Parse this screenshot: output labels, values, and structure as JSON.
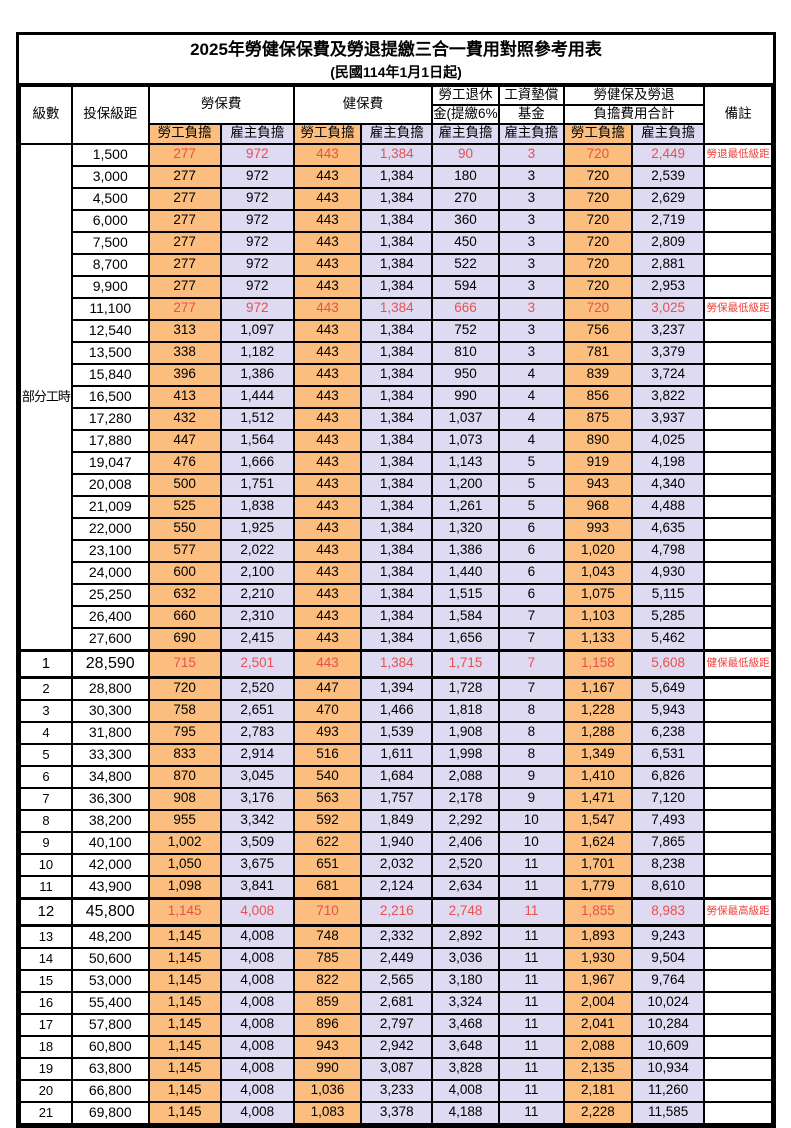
{
  "title": "2025年勞健保保費及勞退提繳三合一費用對照參考用表",
  "subtitle": "(民國114年1月1日起)",
  "colors": {
    "employee_bg": "#FBBE7E",
    "employer_bg": "#DEDAF1",
    "highlight_value_red": "#E8504E",
    "remark_red": "#F23F3A",
    "border": "#000000"
  },
  "header": {
    "level": "級數",
    "bracket": "投保級距",
    "labor_insurance": "勞保費",
    "health_insurance": "健保費",
    "pension_line1": "勞工退休",
    "pension_line2": "金(提繳6%)",
    "wage_fund_line1": "工資墊償",
    "wage_fund_line2": "基金",
    "total_line1": "勞健保及勞退",
    "total_line2": "負擔費用合計",
    "remark": "備註",
    "employee": "勞工負擔",
    "employer": "雇主負擔"
  },
  "table": {
    "group_label": "部分工時",
    "rows": [
      {
        "level": "",
        "bracket": "1,500",
        "values": [
          "277",
          "972",
          "443",
          "1,384",
          "90",
          "3",
          "720",
          "2,449"
        ],
        "remark": "勞退最低級距",
        "red": true
      },
      {
        "level": "",
        "bracket": "3,000",
        "values": [
          "277",
          "972",
          "443",
          "1,384",
          "180",
          "3",
          "720",
          "2,539"
        ],
        "remark": ""
      },
      {
        "level": "",
        "bracket": "4,500",
        "values": [
          "277",
          "972",
          "443",
          "1,384",
          "270",
          "3",
          "720",
          "2,629"
        ],
        "remark": ""
      },
      {
        "level": "",
        "bracket": "6,000",
        "values": [
          "277",
          "972",
          "443",
          "1,384",
          "360",
          "3",
          "720",
          "2,719"
        ],
        "remark": ""
      },
      {
        "level": "",
        "bracket": "7,500",
        "values": [
          "277",
          "972",
          "443",
          "1,384",
          "450",
          "3",
          "720",
          "2,809"
        ],
        "remark": ""
      },
      {
        "level": "",
        "bracket": "8,700",
        "values": [
          "277",
          "972",
          "443",
          "1,384",
          "522",
          "3",
          "720",
          "2,881"
        ],
        "remark": ""
      },
      {
        "level": "",
        "bracket": "9,900",
        "values": [
          "277",
          "972",
          "443",
          "1,384",
          "594",
          "3",
          "720",
          "2,953"
        ],
        "remark": ""
      },
      {
        "level": "",
        "bracket": "11,100",
        "values": [
          "277",
          "972",
          "443",
          "1,384",
          "666",
          "3",
          "720",
          "3,025"
        ],
        "remark": "勞保最低級距",
        "red": true
      },
      {
        "level": "",
        "bracket": "12,540",
        "values": [
          "313",
          "1,097",
          "443",
          "1,384",
          "752",
          "3",
          "756",
          "3,237"
        ],
        "remark": ""
      },
      {
        "level": "",
        "bracket": "13,500",
        "values": [
          "338",
          "1,182",
          "443",
          "1,384",
          "810",
          "3",
          "781",
          "3,379"
        ],
        "remark": ""
      },
      {
        "level": "",
        "bracket": "15,840",
        "values": [
          "396",
          "1,386",
          "443",
          "1,384",
          "950",
          "4",
          "839",
          "3,724"
        ],
        "remark": ""
      },
      {
        "level": "",
        "bracket": "16,500",
        "values": [
          "413",
          "1,444",
          "443",
          "1,384",
          "990",
          "4",
          "856",
          "3,822"
        ],
        "remark": ""
      },
      {
        "level": "",
        "bracket": "17,280",
        "values": [
          "432",
          "1,512",
          "443",
          "1,384",
          "1,037",
          "4",
          "875",
          "3,937"
        ],
        "remark": ""
      },
      {
        "level": "",
        "bracket": "17,880",
        "values": [
          "447",
          "1,564",
          "443",
          "1,384",
          "1,073",
          "4",
          "890",
          "4,025"
        ],
        "remark": ""
      },
      {
        "level": "",
        "bracket": "19,047",
        "values": [
          "476",
          "1,666",
          "443",
          "1,384",
          "1,143",
          "5",
          "919",
          "4,198"
        ],
        "remark": ""
      },
      {
        "level": "",
        "bracket": "20,008",
        "values": [
          "500",
          "1,751",
          "443",
          "1,384",
          "1,200",
          "5",
          "943",
          "4,340"
        ],
        "remark": ""
      },
      {
        "level": "",
        "bracket": "21,009",
        "values": [
          "525",
          "1,838",
          "443",
          "1,384",
          "1,261",
          "5",
          "968",
          "4,488"
        ],
        "remark": ""
      },
      {
        "level": "",
        "bracket": "22,000",
        "values": [
          "550",
          "1,925",
          "443",
          "1,384",
          "1,320",
          "6",
          "993",
          "4,635"
        ],
        "remark": ""
      },
      {
        "level": "",
        "bracket": "23,100",
        "values": [
          "577",
          "2,022",
          "443",
          "1,384",
          "1,386",
          "6",
          "1,020",
          "4,798"
        ],
        "remark": ""
      },
      {
        "level": "",
        "bracket": "24,000",
        "values": [
          "600",
          "2,100",
          "443",
          "1,384",
          "1,440",
          "6",
          "1,043",
          "4,930"
        ],
        "remark": ""
      },
      {
        "level": "",
        "bracket": "25,250",
        "values": [
          "632",
          "2,210",
          "443",
          "1,384",
          "1,515",
          "6",
          "1,075",
          "5,115"
        ],
        "remark": ""
      },
      {
        "level": "",
        "bracket": "26,400",
        "values": [
          "660",
          "2,310",
          "443",
          "1,384",
          "1,584",
          "7",
          "1,103",
          "5,285"
        ],
        "remark": ""
      },
      {
        "level": "",
        "bracket": "27,600",
        "values": [
          "690",
          "2,415",
          "443",
          "1,384",
          "1,656",
          "7",
          "1,133",
          "5,462"
        ],
        "remark": ""
      },
      {
        "level": "1",
        "bracket": "28,590",
        "values": [
          "715",
          "2,501",
          "443",
          "1,384",
          "1,715",
          "7",
          "1,158",
          "5,608"
        ],
        "remark": "健保最低級距",
        "red": true,
        "em": true
      },
      {
        "level": "2",
        "bracket": "28,800",
        "values": [
          "720",
          "2,520",
          "447",
          "1,394",
          "1,728",
          "7",
          "1,167",
          "5,649"
        ],
        "remark": ""
      },
      {
        "level": "3",
        "bracket": "30,300",
        "values": [
          "758",
          "2,651",
          "470",
          "1,466",
          "1,818",
          "8",
          "1,228",
          "5,943"
        ],
        "remark": ""
      },
      {
        "level": "4",
        "bracket": "31,800",
        "values": [
          "795",
          "2,783",
          "493",
          "1,539",
          "1,908",
          "8",
          "1,288",
          "6,238"
        ],
        "remark": ""
      },
      {
        "level": "5",
        "bracket": "33,300",
        "values": [
          "833",
          "2,914",
          "516",
          "1,611",
          "1,998",
          "8",
          "1,349",
          "6,531"
        ],
        "remark": ""
      },
      {
        "level": "6",
        "bracket": "34,800",
        "values": [
          "870",
          "3,045",
          "540",
          "1,684",
          "2,088",
          "9",
          "1,410",
          "6,826"
        ],
        "remark": ""
      },
      {
        "level": "7",
        "bracket": "36,300",
        "values": [
          "908",
          "3,176",
          "563",
          "1,757",
          "2,178",
          "9",
          "1,471",
          "7,120"
        ],
        "remark": ""
      },
      {
        "level": "8",
        "bracket": "38,200",
        "values": [
          "955",
          "3,342",
          "592",
          "1,849",
          "2,292",
          "10",
          "1,547",
          "7,493"
        ],
        "remark": ""
      },
      {
        "level": "9",
        "bracket": "40,100",
        "values": [
          "1,002",
          "3,509",
          "622",
          "1,940",
          "2,406",
          "10",
          "1,624",
          "7,865"
        ],
        "remark": ""
      },
      {
        "level": "10",
        "bracket": "42,000",
        "values": [
          "1,050",
          "3,675",
          "651",
          "2,032",
          "2,520",
          "11",
          "1,701",
          "8,238"
        ],
        "remark": ""
      },
      {
        "level": "11",
        "bracket": "43,900",
        "values": [
          "1,098",
          "3,841",
          "681",
          "2,124",
          "2,634",
          "11",
          "1,779",
          "8,610"
        ],
        "remark": ""
      },
      {
        "level": "12",
        "bracket": "45,800",
        "values": [
          "1,145",
          "4,008",
          "710",
          "2,216",
          "2,748",
          "11",
          "1,855",
          "8,983"
        ],
        "remark": "勞保最高級距",
        "red": true,
        "em": true
      },
      {
        "level": "13",
        "bracket": "48,200",
        "values": [
          "1,145",
          "4,008",
          "748",
          "2,332",
          "2,892",
          "11",
          "1,893",
          "9,243"
        ],
        "remark": ""
      },
      {
        "level": "14",
        "bracket": "50,600",
        "values": [
          "1,145",
          "4,008",
          "785",
          "2,449",
          "3,036",
          "11",
          "1,930",
          "9,504"
        ],
        "remark": ""
      },
      {
        "level": "15",
        "bracket": "53,000",
        "values": [
          "1,145",
          "4,008",
          "822",
          "2,565",
          "3,180",
          "11",
          "1,967",
          "9,764"
        ],
        "remark": ""
      },
      {
        "level": "16",
        "bracket": "55,400",
        "values": [
          "1,145",
          "4,008",
          "859",
          "2,681",
          "3,324",
          "11",
          "2,004",
          "10,024"
        ],
        "remark": ""
      },
      {
        "level": "17",
        "bracket": "57,800",
        "values": [
          "1,145",
          "4,008",
          "896",
          "2,797",
          "3,468",
          "11",
          "2,041",
          "10,284"
        ],
        "remark": ""
      },
      {
        "level": "18",
        "bracket": "60,800",
        "values": [
          "1,145",
          "4,008",
          "943",
          "2,942",
          "3,648",
          "11",
          "2,088",
          "10,609"
        ],
        "remark": ""
      },
      {
        "level": "19",
        "bracket": "63,800",
        "values": [
          "1,145",
          "4,008",
          "990",
          "3,087",
          "3,828",
          "11",
          "2,135",
          "10,934"
        ],
        "remark": ""
      },
      {
        "level": "20",
        "bracket": "66,800",
        "values": [
          "1,145",
          "4,008",
          "1,036",
          "3,233",
          "4,008",
          "11",
          "2,181",
          "11,260"
        ],
        "remark": ""
      },
      {
        "level": "21",
        "bracket": "69,800",
        "values": [
          "1,145",
          "4,008",
          "1,083",
          "3,378",
          "4,188",
          "11",
          "2,228",
          "11,585"
        ],
        "remark": ""
      }
    ]
  }
}
